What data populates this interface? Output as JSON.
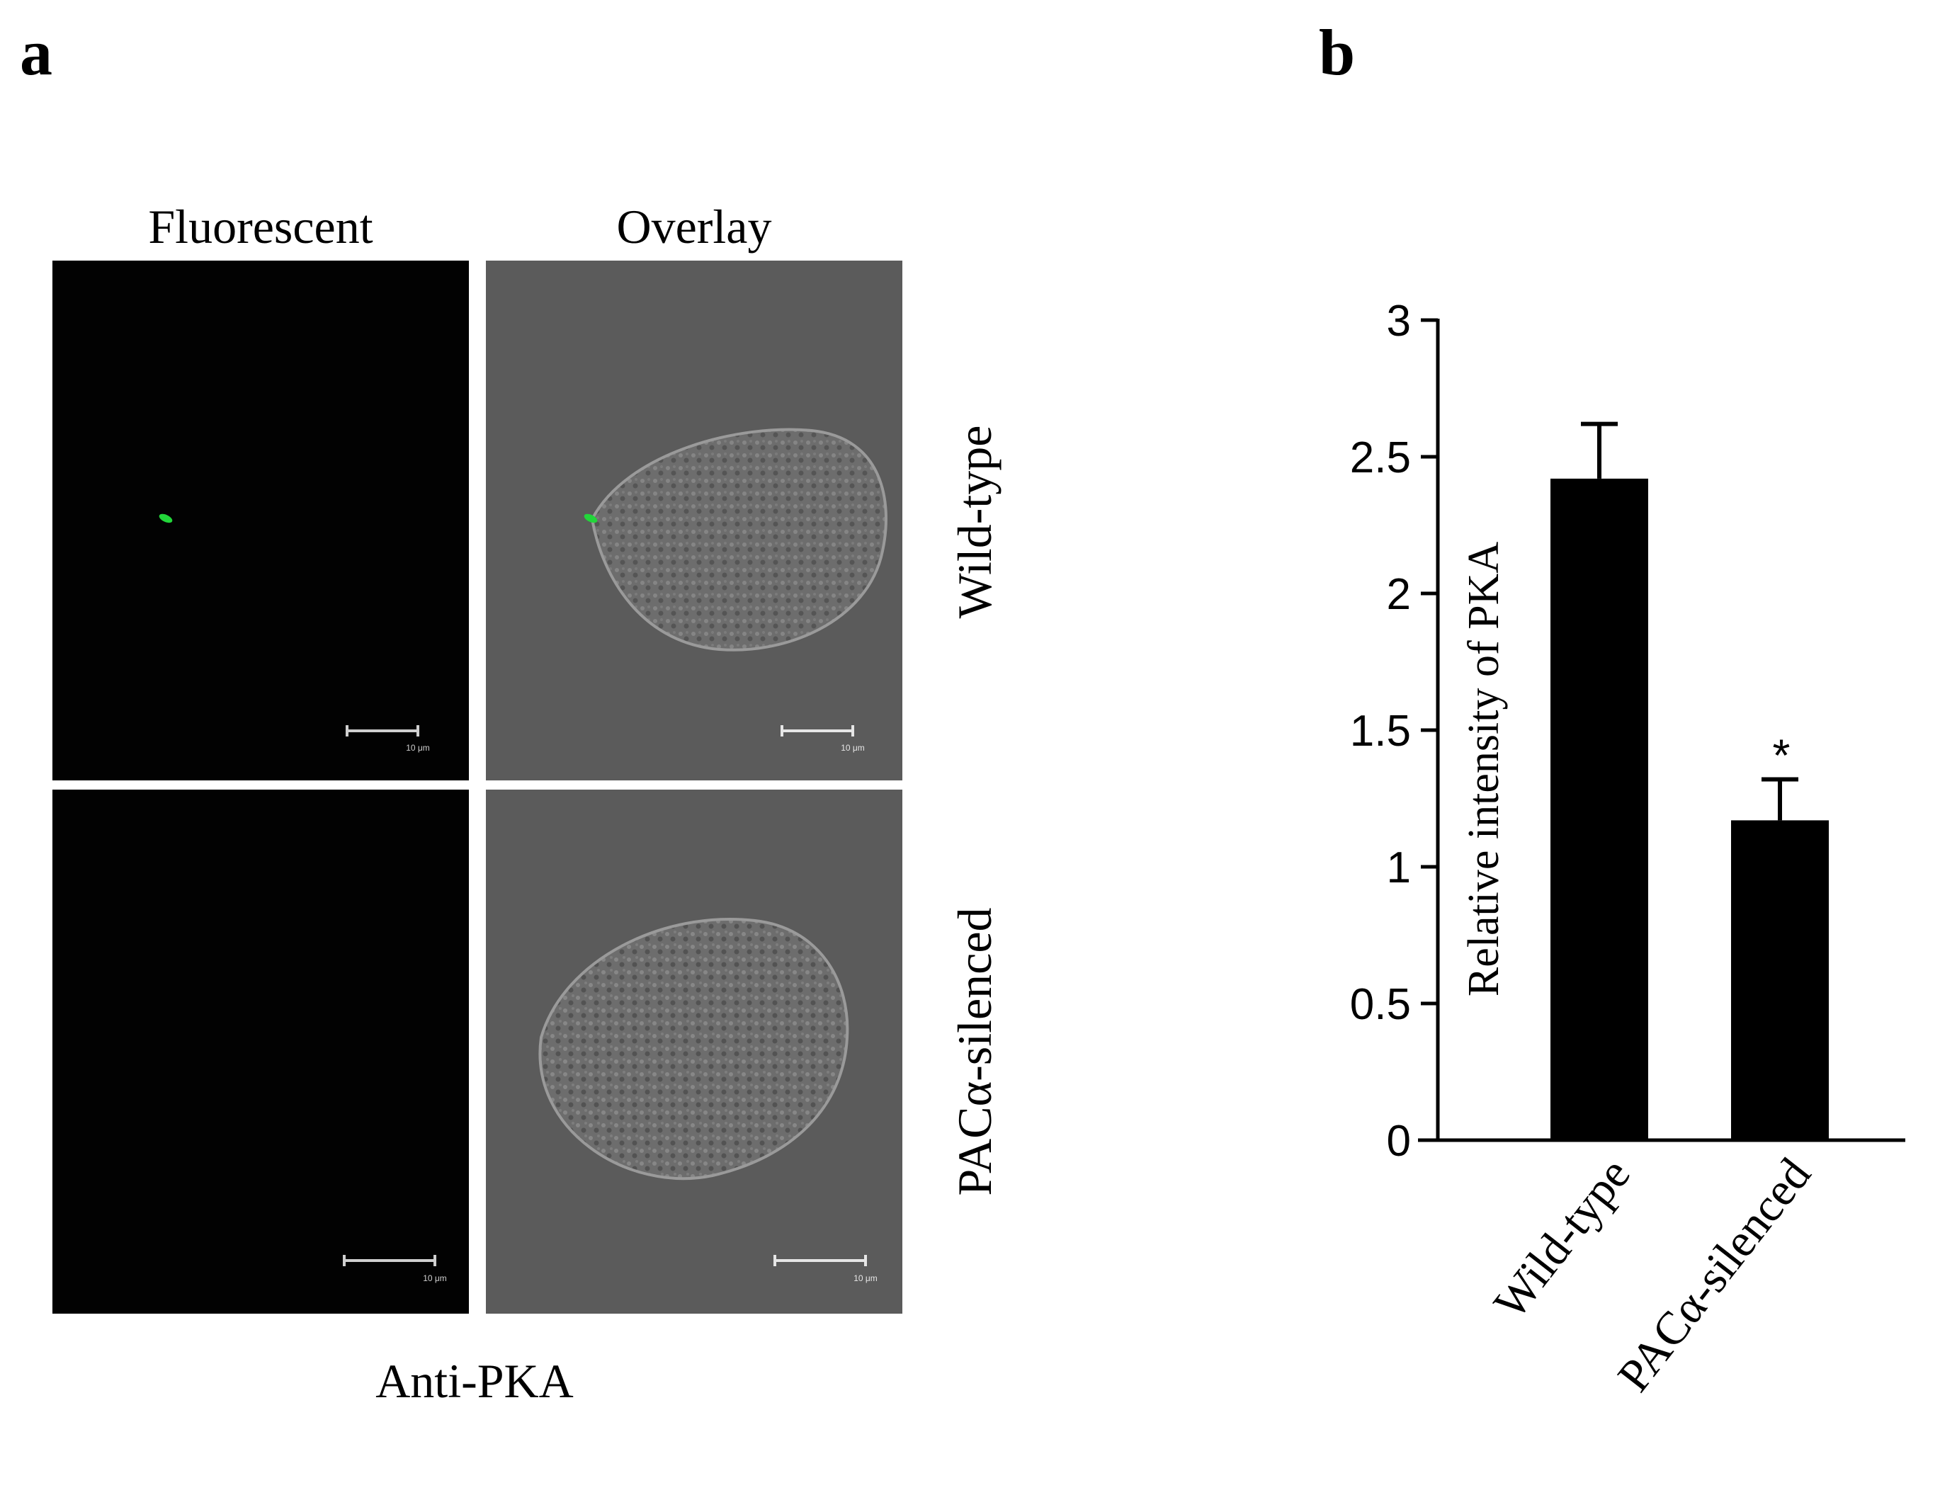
{
  "panels": {
    "a_label": "a",
    "b_label": "b"
  },
  "micrographs": {
    "col_headers": [
      "Fluorescent",
      "Overlay"
    ],
    "row_labels": [
      "Wild-type",
      "PACα-silenced"
    ],
    "antibody": "Anti-PKA",
    "scale_bar_label": "10 μm",
    "colors": {
      "fluorescent_bg": "#020202",
      "overlay_bg": "#5b5b5b",
      "signal": "#22d63a"
    }
  },
  "chart_data": {
    "type": "bar",
    "categories": [
      "Wild-type",
      "PACα-silenced"
    ],
    "values": [
      2.42,
      1.17
    ],
    "error": [
      0.2,
      0.15
    ],
    "significance": [
      "",
      "*"
    ],
    "title": "",
    "xlabel": "",
    "ylabel": "Relative intensity of PKA",
    "ylim": [
      0,
      3
    ],
    "yticks": [
      "0",
      "0.5",
      "1",
      "1.5",
      "2",
      "2.5",
      "3"
    ],
    "bar_color": "#000000",
    "grid": false,
    "legend": "none"
  }
}
